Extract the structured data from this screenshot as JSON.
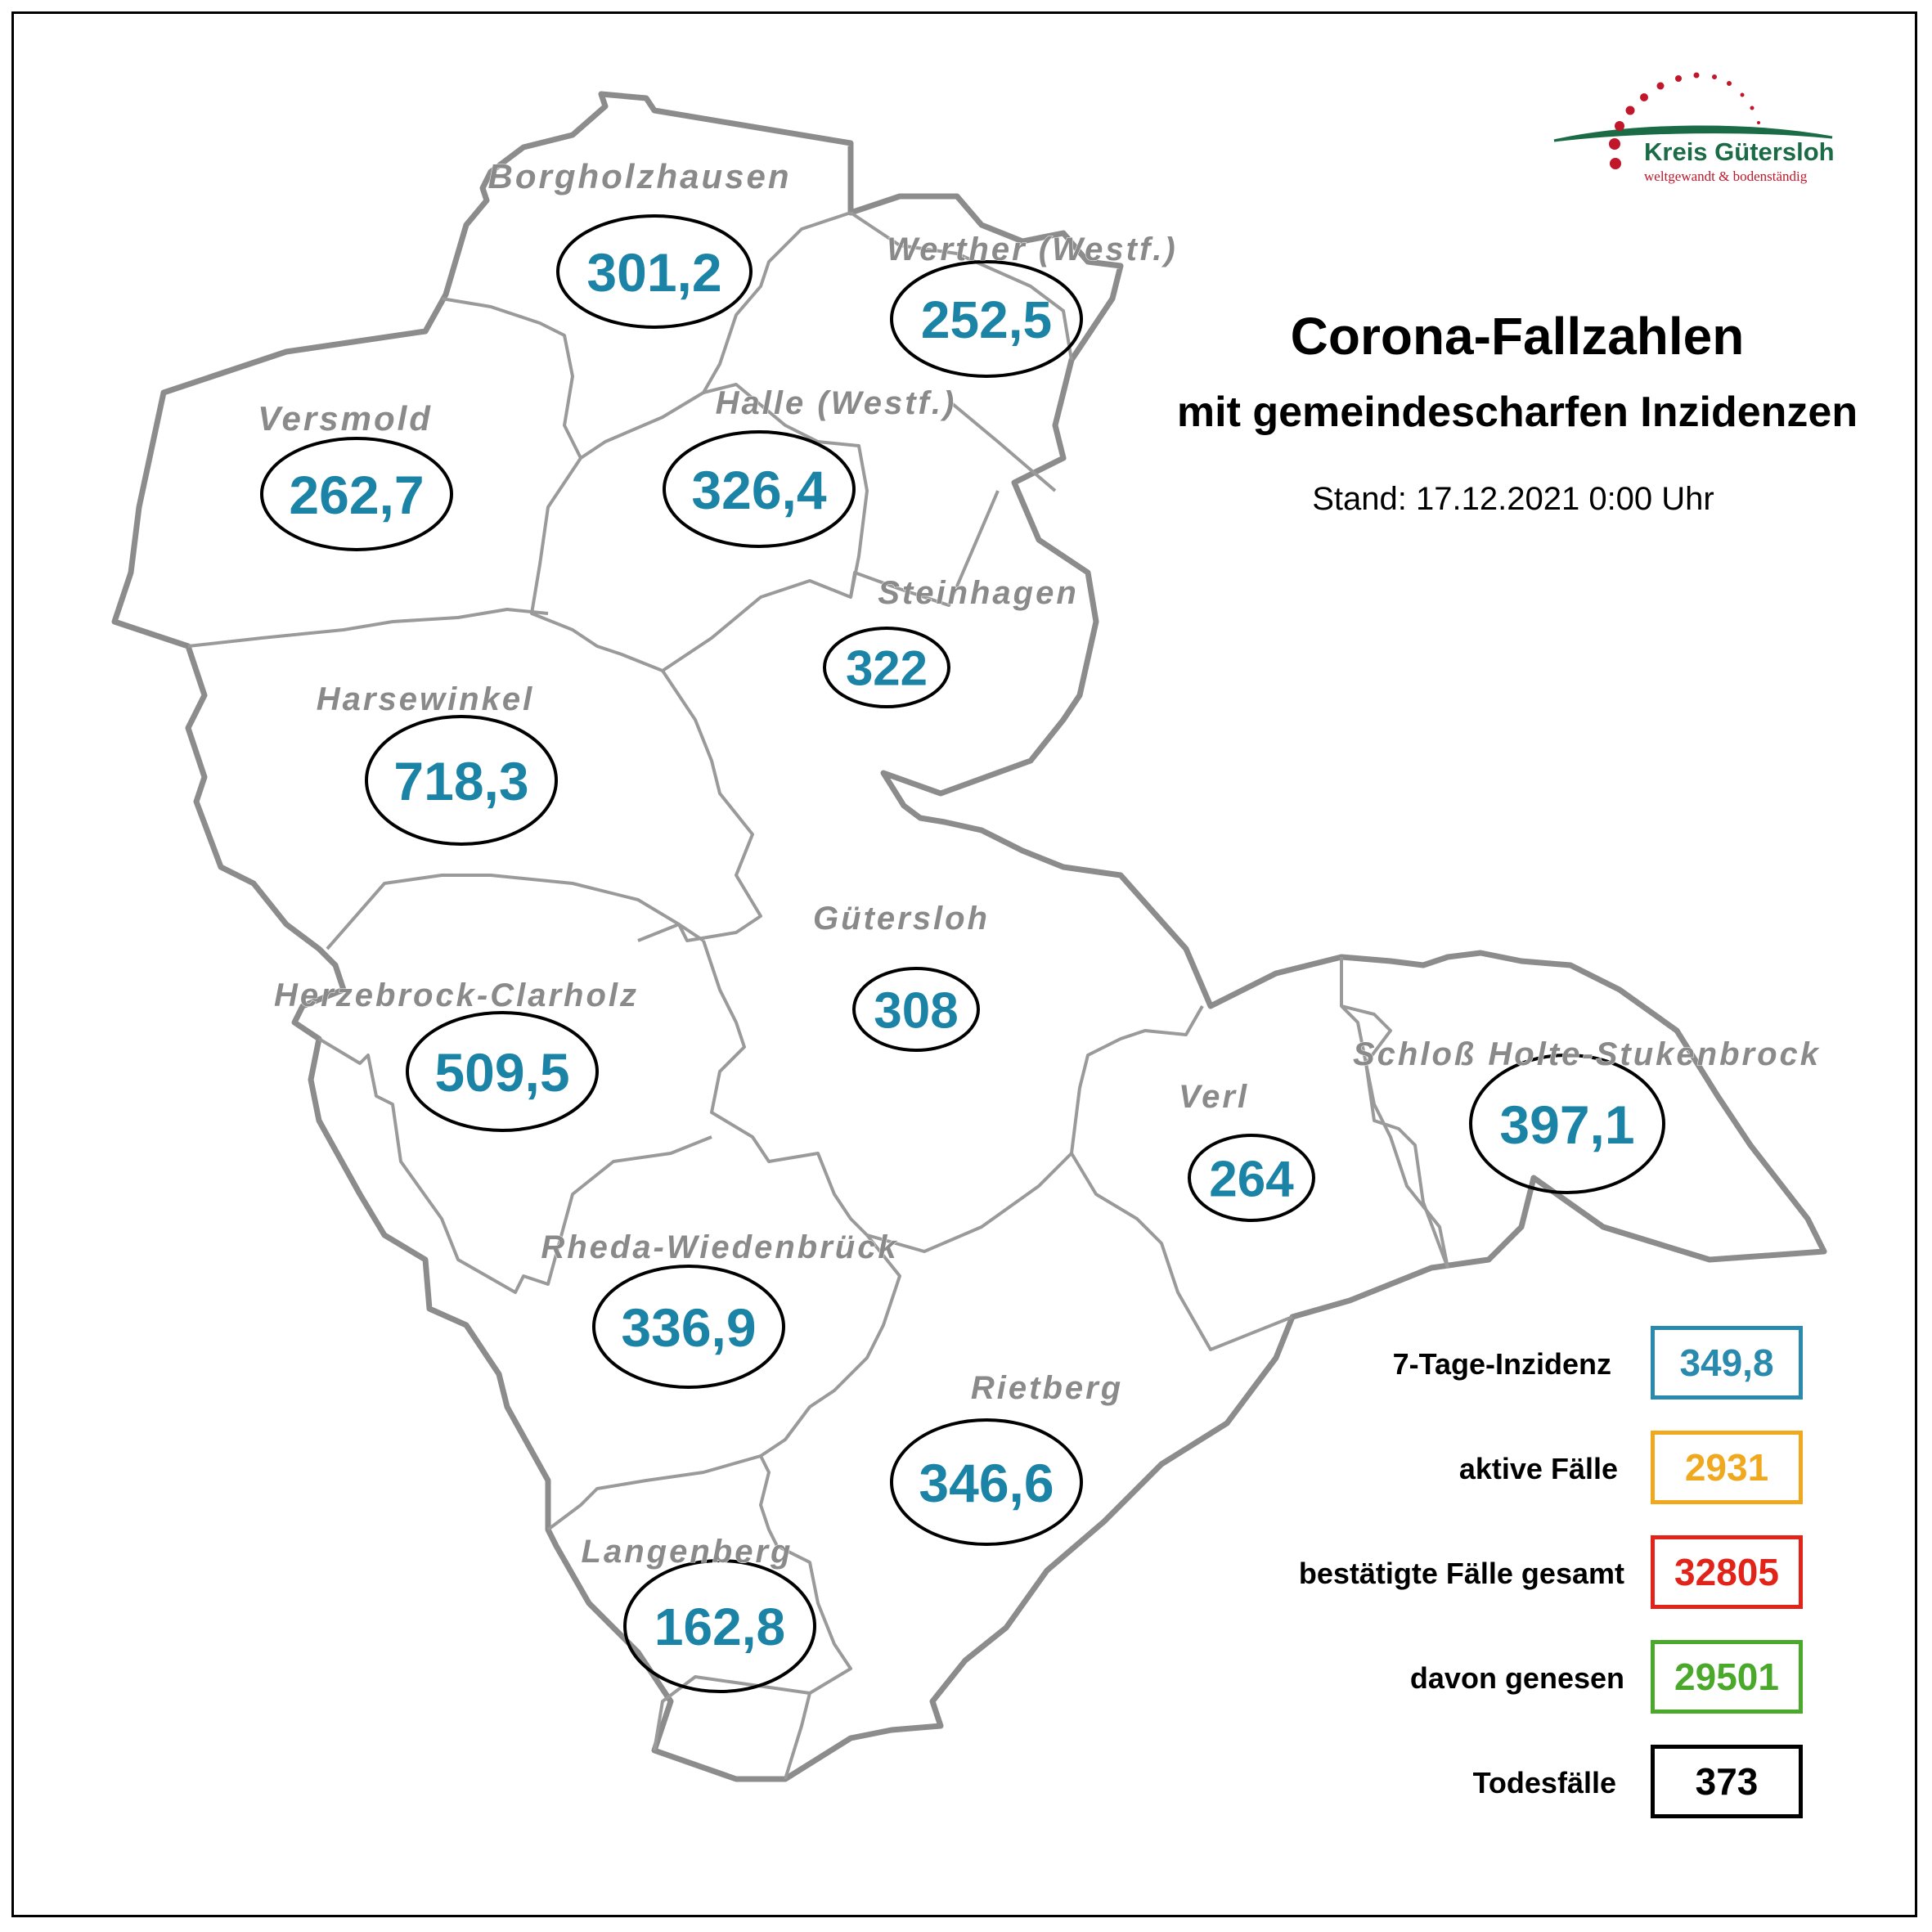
{
  "title": "Corona-Fallzahlen",
  "subtitle": "mit gemeindescharfen Inzidenzen",
  "stand": "Stand: 17.12.2021 0:00 Uhr",
  "logo": {
    "name": "Kreis Gütersloh",
    "slogan": "weltgewandt & bodenständig",
    "green": "#1a6b46",
    "red": "#c0172a"
  },
  "municipalities": [
    {
      "name": "Borgholzhausen",
      "value": "301,2"
    },
    {
      "name": "Werther (Westf.)",
      "value": "252,5"
    },
    {
      "name": "Versmold",
      "value": "262,7"
    },
    {
      "name": "Halle (Westf.)",
      "value": "326,4"
    },
    {
      "name": "Steinhagen",
      "value": "322"
    },
    {
      "name": "Harsewinkel",
      "value": "718,3"
    },
    {
      "name": "Gütersloh",
      "value": "308"
    },
    {
      "name": "Herzebrock-Clarholz",
      "value": "509,5"
    },
    {
      "name": "Schloß Holte-Stukenbrock",
      "value": "397,1"
    },
    {
      "name": "Verl",
      "value": "264"
    },
    {
      "name": "Rheda-Wiedenbrück",
      "value": "336,9"
    },
    {
      "name": "Rietberg",
      "value": "346,6"
    },
    {
      "name": "Langenberg",
      "value": "162,8"
    }
  ],
  "legend": [
    {
      "label": "7-Tage-Inzidenz",
      "value": "349,8",
      "color": "#2a8aae"
    },
    {
      "label": "aktive Fälle",
      "value": "2931",
      "color": "#f0a91e"
    },
    {
      "label": "bestätigte Fälle gesamt",
      "value": "32805",
      "color": "#e2231a"
    },
    {
      "label": "davon genesen",
      "value": "29501",
      "color": "#4aa82a"
    },
    {
      "label": "Todesfälle",
      "value": "373",
      "color": "#000000"
    }
  ],
  "colors": {
    "value_text": "#1b84a6",
    "name_text": "#8a8a8a",
    "border": "#8c8c8c"
  }
}
